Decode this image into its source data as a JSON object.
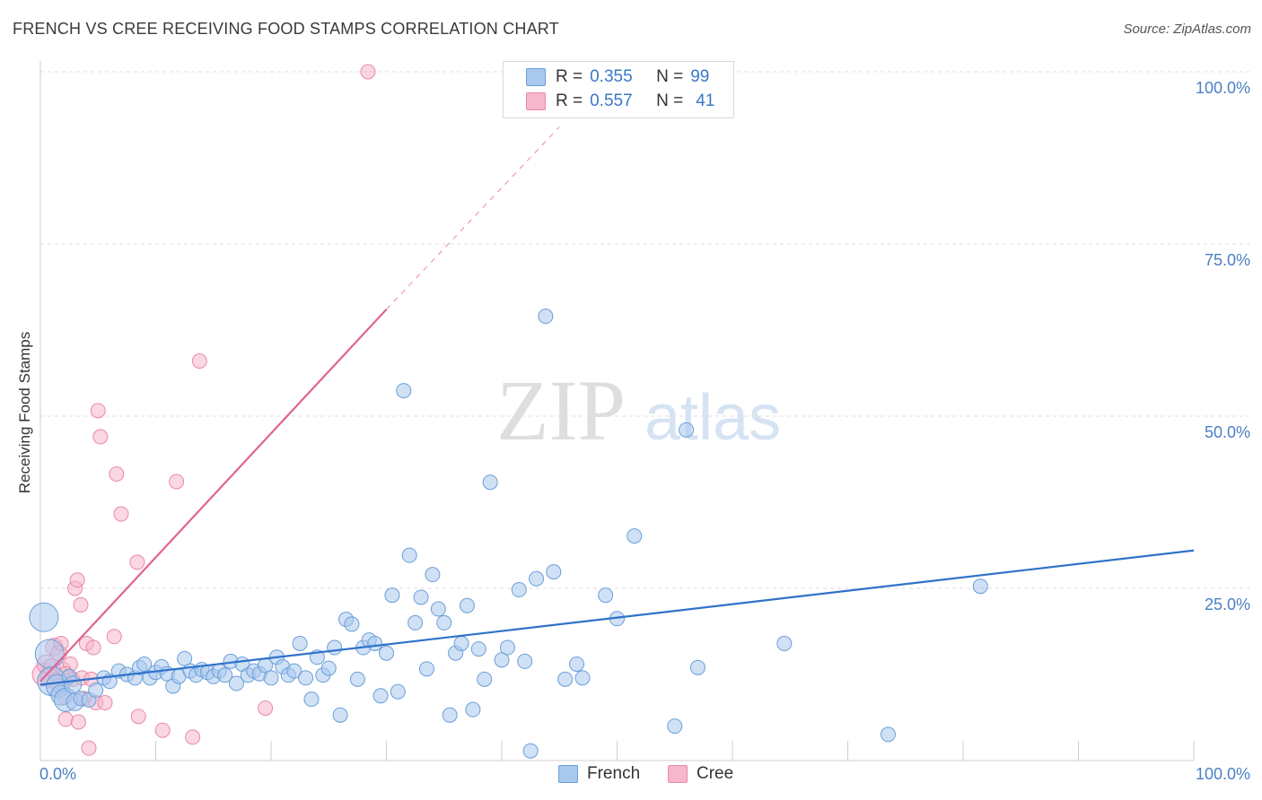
{
  "header": {
    "title": "FRENCH VS CREE RECEIVING FOOD STAMPS CORRELATION CHART",
    "source": "Source: ZipAtlas.com"
  },
  "watermark": {
    "zip": "ZIP",
    "atlas": "atlas"
  },
  "legend": {
    "french": {
      "r_label": "R =",
      "r_value": "0.355",
      "n_label": "N =",
      "n_value": "99"
    },
    "cree": {
      "r_label": "R =",
      "r_value": "0.557",
      "n_label": "N =",
      "n_value": "41"
    }
  },
  "colors": {
    "french_fill": "#a9c8ee",
    "french_stroke": "#6a9fd8",
    "french_line": "#2f72c9",
    "cree_fill": "#f6b6cb",
    "cree_stroke": "#e889a8",
    "cree_line": "#e0658f",
    "tick_label": "#4a7fc6",
    "grid": "#dcdcdc"
  },
  "chart_data": {
    "type": "scatter",
    "xlabel": "",
    "ylabel": "Receiving Food Stamps",
    "xlim": [
      0,
      100
    ],
    "ylim": [
      0,
      100
    ],
    "x_tick_labels": [
      "0.0%",
      "100.0%"
    ],
    "y_tick_labels": [
      "25.0%",
      "50.0%",
      "75.0%",
      "100.0%"
    ],
    "y_ticks": [
      25,
      50,
      75,
      100
    ],
    "grid": "horizontal dashed",
    "legend_position": "top-center",
    "series": [
      {
        "name": "French",
        "trend": {
          "x0": 0,
          "y0": 11.0,
          "x1": 100,
          "y1": 30.5
        },
        "points": [
          [
            0.3,
            20.8,
            2
          ],
          [
            0.8,
            15.5,
            2
          ],
          [
            1.0,
            11.5,
            2
          ],
          [
            1.5,
            10.8,
            1.6
          ],
          [
            1.8,
            9.5,
            1.4
          ],
          [
            2.2,
            8.8,
            1.6
          ],
          [
            2.5,
            12.2,
            1
          ],
          [
            3.0,
            8.5,
            1.2
          ],
          [
            3.5,
            9.0,
            1
          ],
          [
            4.2,
            8.8,
            1
          ],
          [
            4.8,
            10.2,
            1
          ],
          [
            5.5,
            12.0,
            1
          ],
          [
            6.0,
            11.5,
            1
          ],
          [
            6.8,
            13.0,
            1
          ],
          [
            7.5,
            12.5,
            1
          ],
          [
            8.2,
            12.0,
            1
          ],
          [
            8.6,
            13.5,
            1
          ],
          [
            9.0,
            14.0,
            1
          ],
          [
            9.5,
            12.0,
            1
          ],
          [
            10.0,
            12.8,
            1
          ],
          [
            10.5,
            13.6,
            1
          ],
          [
            11.0,
            12.6,
            1
          ],
          [
            11.5,
            10.8,
            1
          ],
          [
            12.0,
            12.2,
            1
          ],
          [
            12.5,
            14.8,
            1
          ],
          [
            13.0,
            13.0,
            1
          ],
          [
            13.5,
            12.4,
            1
          ],
          [
            14.0,
            13.2,
            1
          ],
          [
            14.5,
            12.8,
            1
          ],
          [
            15.0,
            12.2,
            1
          ],
          [
            15.5,
            13.0,
            1
          ],
          [
            16.0,
            12.4,
            1
          ],
          [
            16.5,
            14.4,
            1
          ],
          [
            17.0,
            11.2,
            1
          ],
          [
            17.5,
            14.0,
            1
          ],
          [
            18.0,
            12.4,
            1
          ],
          [
            18.5,
            13.0,
            1
          ],
          [
            19.0,
            12.6,
            1
          ],
          [
            19.5,
            13.8,
            1
          ],
          [
            20.0,
            12.0,
            1
          ],
          [
            20.5,
            15.0,
            1
          ],
          [
            21.0,
            13.6,
            1
          ],
          [
            21.5,
            12.4,
            1
          ],
          [
            22.0,
            13.0,
            1
          ],
          [
            22.5,
            17.0,
            1
          ],
          [
            23.0,
            12.0,
            1
          ],
          [
            23.5,
            8.9,
            1
          ],
          [
            24.0,
            15.0,
            1
          ],
          [
            24.5,
            12.4,
            1
          ],
          [
            25.0,
            13.4,
            1
          ],
          [
            25.5,
            16.4,
            1
          ],
          [
            26.0,
            6.6,
            1
          ],
          [
            26.5,
            20.5,
            1
          ],
          [
            27.0,
            19.8,
            1
          ],
          [
            27.5,
            11.8,
            1
          ],
          [
            28.0,
            16.4,
            1
          ],
          [
            28.5,
            17.5,
            1
          ],
          [
            29.0,
            17.0,
            1
          ],
          [
            29.5,
            9.4,
            1
          ],
          [
            30.0,
            15.6,
            1
          ],
          [
            30.5,
            24.0,
            1
          ],
          [
            31.0,
            10.0,
            1
          ],
          [
            31.5,
            53.7,
            1
          ],
          [
            32.0,
            29.8,
            1
          ],
          [
            32.5,
            20.0,
            1
          ],
          [
            33.0,
            23.7,
            1
          ],
          [
            33.5,
            13.3,
            1
          ],
          [
            34.0,
            27.0,
            1
          ],
          [
            34.5,
            22.0,
            1
          ],
          [
            35.0,
            20.0,
            1
          ],
          [
            35.5,
            6.6,
            1
          ],
          [
            36.0,
            15.6,
            1
          ],
          [
            36.5,
            17.0,
            1
          ],
          [
            37.0,
            22.5,
            1
          ],
          [
            37.5,
            7.4,
            1
          ],
          [
            38.0,
            16.2,
            1
          ],
          [
            38.5,
            11.8,
            1
          ],
          [
            39.0,
            40.4,
            1
          ],
          [
            40.0,
            14.6,
            1
          ],
          [
            40.5,
            16.4,
            1
          ],
          [
            41.5,
            24.8,
            1
          ],
          [
            42.0,
            14.4,
            1
          ],
          [
            42.5,
            1.4,
            1
          ],
          [
            43.0,
            26.4,
            1
          ],
          [
            43.8,
            64.5,
            1
          ],
          [
            44.5,
            27.4,
            1
          ],
          [
            45.5,
            11.8,
            1
          ],
          [
            46.5,
            14.0,
            1
          ],
          [
            47.0,
            12.0,
            1
          ],
          [
            49.0,
            24.0,
            1
          ],
          [
            50.0,
            20.6,
            1
          ],
          [
            51.5,
            32.6,
            1
          ],
          [
            55.0,
            5.0,
            1
          ],
          [
            56.0,
            48.0,
            1
          ],
          [
            57.0,
            13.5,
            1
          ],
          [
            64.5,
            17.0,
            1
          ],
          [
            73.5,
            3.8,
            1
          ],
          [
            81.5,
            25.3,
            1
          ],
          [
            2.8,
            11.0,
            1.2
          ]
        ]
      },
      {
        "name": "Cree",
        "trend": {
          "x0": 0,
          "y0": 11.5,
          "x1": 30,
          "y1": 65.5,
          "dash_to": {
            "x": 45,
            "y": 92
          }
        },
        "points": [
          [
            0.3,
            12.5,
            1.6
          ],
          [
            0.5,
            14.0,
            1.3
          ],
          [
            0.8,
            12.0,
            1.3
          ],
          [
            1.0,
            13.5,
            1.2
          ],
          [
            1.2,
            16.5,
            1.2
          ],
          [
            1.4,
            11.5,
            1.2
          ],
          [
            1.6,
            15.6,
            1.1
          ],
          [
            1.8,
            17.0,
            1
          ],
          [
            2.0,
            13.2,
            1
          ],
          [
            2.1,
            9.2,
            1
          ],
          [
            2.2,
            6.0,
            1
          ],
          [
            2.4,
            12.0,
            1
          ],
          [
            2.6,
            14.0,
            1
          ],
          [
            2.8,
            11.8,
            1
          ],
          [
            3.0,
            25.0,
            1
          ],
          [
            3.2,
            26.2,
            1
          ],
          [
            3.3,
            5.6,
            1
          ],
          [
            3.5,
            22.6,
            1
          ],
          [
            3.6,
            12.0,
            1
          ],
          [
            3.8,
            9.0,
            1
          ],
          [
            4.0,
            17.0,
            1
          ],
          [
            4.2,
            1.8,
            1
          ],
          [
            4.4,
            11.8,
            1
          ],
          [
            4.6,
            16.4,
            1
          ],
          [
            4.8,
            8.4,
            1
          ],
          [
            5.0,
            50.8,
            1
          ],
          [
            5.2,
            47.0,
            1
          ],
          [
            5.6,
            8.4,
            1
          ],
          [
            6.4,
            18.0,
            1
          ],
          [
            6.6,
            41.6,
            1
          ],
          [
            7.0,
            35.8,
            1
          ],
          [
            8.4,
            28.8,
            1
          ],
          [
            8.5,
            6.4,
            1
          ],
          [
            10.6,
            4.4,
            1
          ],
          [
            11.8,
            40.5,
            1
          ],
          [
            13.2,
            3.4,
            1
          ],
          [
            13.8,
            58.0,
            1
          ],
          [
            19.5,
            7.6,
            1
          ],
          [
            28.4,
            100.0,
            1
          ],
          [
            2.2,
            12.6,
            1
          ],
          [
            1.6,
            10.8,
            1
          ]
        ]
      }
    ]
  },
  "bottom_legend": {
    "french": "French",
    "cree": "Cree"
  }
}
